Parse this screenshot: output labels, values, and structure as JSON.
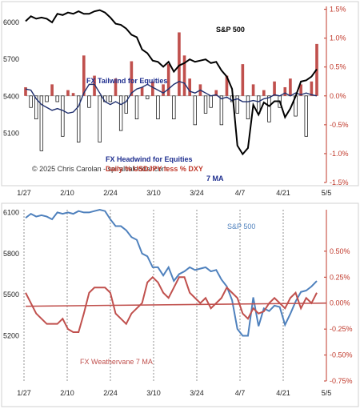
{
  "chart_data": [
    {
      "type": "line",
      "title": "",
      "x_ticks": [
        "1/27",
        "2/10",
        "2/24",
        "3/10",
        "3/24",
        "4/7",
        "4/21",
        "5/5"
      ],
      "left_axis": {
        "ticks": [
          6000,
          5700,
          5400,
          5100
        ],
        "ylim": [
          4700,
          6130
        ]
      },
      "right_axis": {
        "ticks": [
          "1.5%",
          "1.0%",
          "0.5%",
          "0.0%",
          "-0.5%",
          "-1.0%",
          "-1.5%"
        ],
        "ylim": [
          -1.5,
          1.55
        ]
      },
      "series": [
        {
          "name": "S&P 500",
          "type": "line",
          "color": "#000000",
          "values": [
            6010,
            6050,
            6030,
            6040,
            6030,
            6000,
            6070,
            6060,
            6080,
            6070,
            6090,
            6070,
            6070,
            6090,
            6100,
            6080,
            6040,
            5990,
            5980,
            5950,
            5900,
            5880,
            5780,
            5750,
            5690,
            5680,
            5640,
            5680,
            5600,
            5650,
            5670,
            5700,
            5680,
            5690,
            5700,
            5670,
            5680,
            5610,
            5560,
            5460,
            5000,
            4930,
            4980,
            5330,
            5250,
            5350,
            5320,
            5360,
            5360,
            5230,
            5300,
            5400,
            5520,
            5530,
            5560,
            5620
          ]
        },
        {
          "name": "Daily % USDJPY less % DXY",
          "type": "bar",
          "color": "#c0504d",
          "values": [
            0.15,
            -0.2,
            -0.4,
            -0.95,
            -0.1,
            0.2,
            -0.1,
            -0.7,
            0.1,
            0.05,
            -0.8,
            0.7,
            -0.2,
            0.35,
            -0.8,
            -0.1,
            -0.1,
            0.3,
            -0.6,
            -0.3,
            0.6,
            -0.4,
            0.15,
            -0.05,
            0.25,
            -0.4,
            0.2,
            0.55,
            -0.4,
            1.1,
            0.7,
            0.3,
            -0.5,
            0.2,
            -0.3,
            -0.2,
            0.1,
            -0.5,
            0.35,
            -0.1,
            -0.3,
            0.55,
            -0.4,
            0.2,
            -0.3,
            0.1,
            -0.45,
            0.25,
            -0.2,
            0.15,
            0.3,
            -0.35,
            0.2,
            -0.7,
            0.25,
            0.9
          ]
        },
        {
          "name": "7 MA",
          "type": "line",
          "color": "#1f2f6e",
          "values": [
            0.12,
            0.1,
            -0.05,
            -0.15,
            -0.2,
            -0.25,
            -0.22,
            -0.25,
            -0.3,
            -0.28,
            -0.18,
            0.05,
            0.2,
            0.2,
            0.05,
            -0.1,
            -0.15,
            -0.1,
            -0.15,
            -0.1,
            0.05,
            0.12,
            0.15,
            0.2,
            0.15,
            0.1,
            0.05,
            0.12,
            0.2,
            0.25,
            0.22,
            0.08,
            0.05,
            0.1,
            0.05,
            0.0,
            0.02,
            -0.05,
            -0.02,
            -0.08,
            -0.05,
            -0.1,
            -0.1,
            -0.08,
            -0.1,
            -0.05,
            -0.03,
            0.02,
            0.0,
            0.05,
            0.0,
            0.05,
            0.02,
            0.05,
            0.02,
            0.0
          ]
        }
      ],
      "annotations": {
        "sp_label": "S&P 500",
        "tailwind": "FX Tailwind for Equities",
        "headwind": "FX Headwind for Equities",
        "copyright": "© 2025 Chris Carolan - spiralcalendar.com",
        "daily_label": "Daily % USDJPY less % DXY",
        "ma_label": "7 MA"
      },
      "colors": {
        "sp": "#000000",
        "bars": "#c0504d",
        "ma": "#1f2f6e",
        "right_axis": "#c0392b",
        "annot_blue": "#1f2f8f"
      }
    },
    {
      "type": "line",
      "title": "",
      "x_ticks": [
        "1/27",
        "2/10",
        "2/24",
        "3/10",
        "3/24",
        "4/7",
        "4/21",
        "5/5"
      ],
      "left_axis": {
        "ticks": [
          6100,
          5800,
          5500,
          5200
        ],
        "ylim": [
          4870,
          6120
        ]
      },
      "right_axis": {
        "ticks": [
          "0.50%",
          "0.25%",
          "0.00%",
          "-0.25%",
          "-0.50%",
          "-0.75%"
        ],
        "ylim": [
          -0.75,
          0.9
        ]
      },
      "series": [
        {
          "name": "S&P 500",
          "type": "line",
          "color": "#4f81bd",
          "values": [
            6060,
            6090,
            6070,
            6080,
            6070,
            6050,
            6100,
            6090,
            6100,
            6090,
            6110,
            6100,
            6100,
            6110,
            6120,
            6110,
            6050,
            6000,
            6000,
            5970,
            5920,
            5900,
            5800,
            5780,
            5700,
            5700,
            5640,
            5700,
            5600,
            5650,
            5670,
            5700,
            5680,
            5690,
            5700,
            5670,
            5680,
            5610,
            5560,
            5460,
            5250,
            5200,
            5200,
            5480,
            5270,
            5400,
            5380,
            5420,
            5410,
            5280,
            5360,
            5450,
            5520,
            5530,
            5560,
            5600
          ]
        },
        {
          "name": "FX Weathervane 7 MA",
          "type": "line",
          "color": "#c0504d",
          "values": [
            0.1,
            0.0,
            -0.1,
            -0.15,
            -0.2,
            -0.2,
            -0.2,
            -0.15,
            -0.25,
            -0.28,
            -0.28,
            -0.1,
            0.1,
            0.15,
            0.15,
            0.15,
            0.1,
            -0.1,
            -0.15,
            -0.2,
            -0.1,
            -0.05,
            0.0,
            0.2,
            0.25,
            0.2,
            0.1,
            0.05,
            0.15,
            0.25,
            0.25,
            0.1,
            0.05,
            0.0,
            0.05,
            -0.05,
            0.0,
            0.05,
            0.15,
            0.1,
            0.05,
            -0.1,
            -0.15,
            -0.05,
            -0.1,
            -0.08,
            0.0,
            0.05,
            0.0,
            -0.05,
            0.05,
            0.1,
            -0.05,
            0.05,
            0.0,
            0.1
          ]
        },
        {
          "name": "trend",
          "type": "line",
          "color": "#c0504d",
          "values": [
            -0.03,
            0.0
          ]
        }
      ],
      "annotations": {
        "sp_label": "S&P 500",
        "fx_label": "FX Weathervane 7 MA"
      },
      "colors": {
        "sp": "#4f81bd",
        "fx": "#c0504d",
        "right_axis": "#c0392b",
        "grid": "#777777"
      }
    }
  ]
}
